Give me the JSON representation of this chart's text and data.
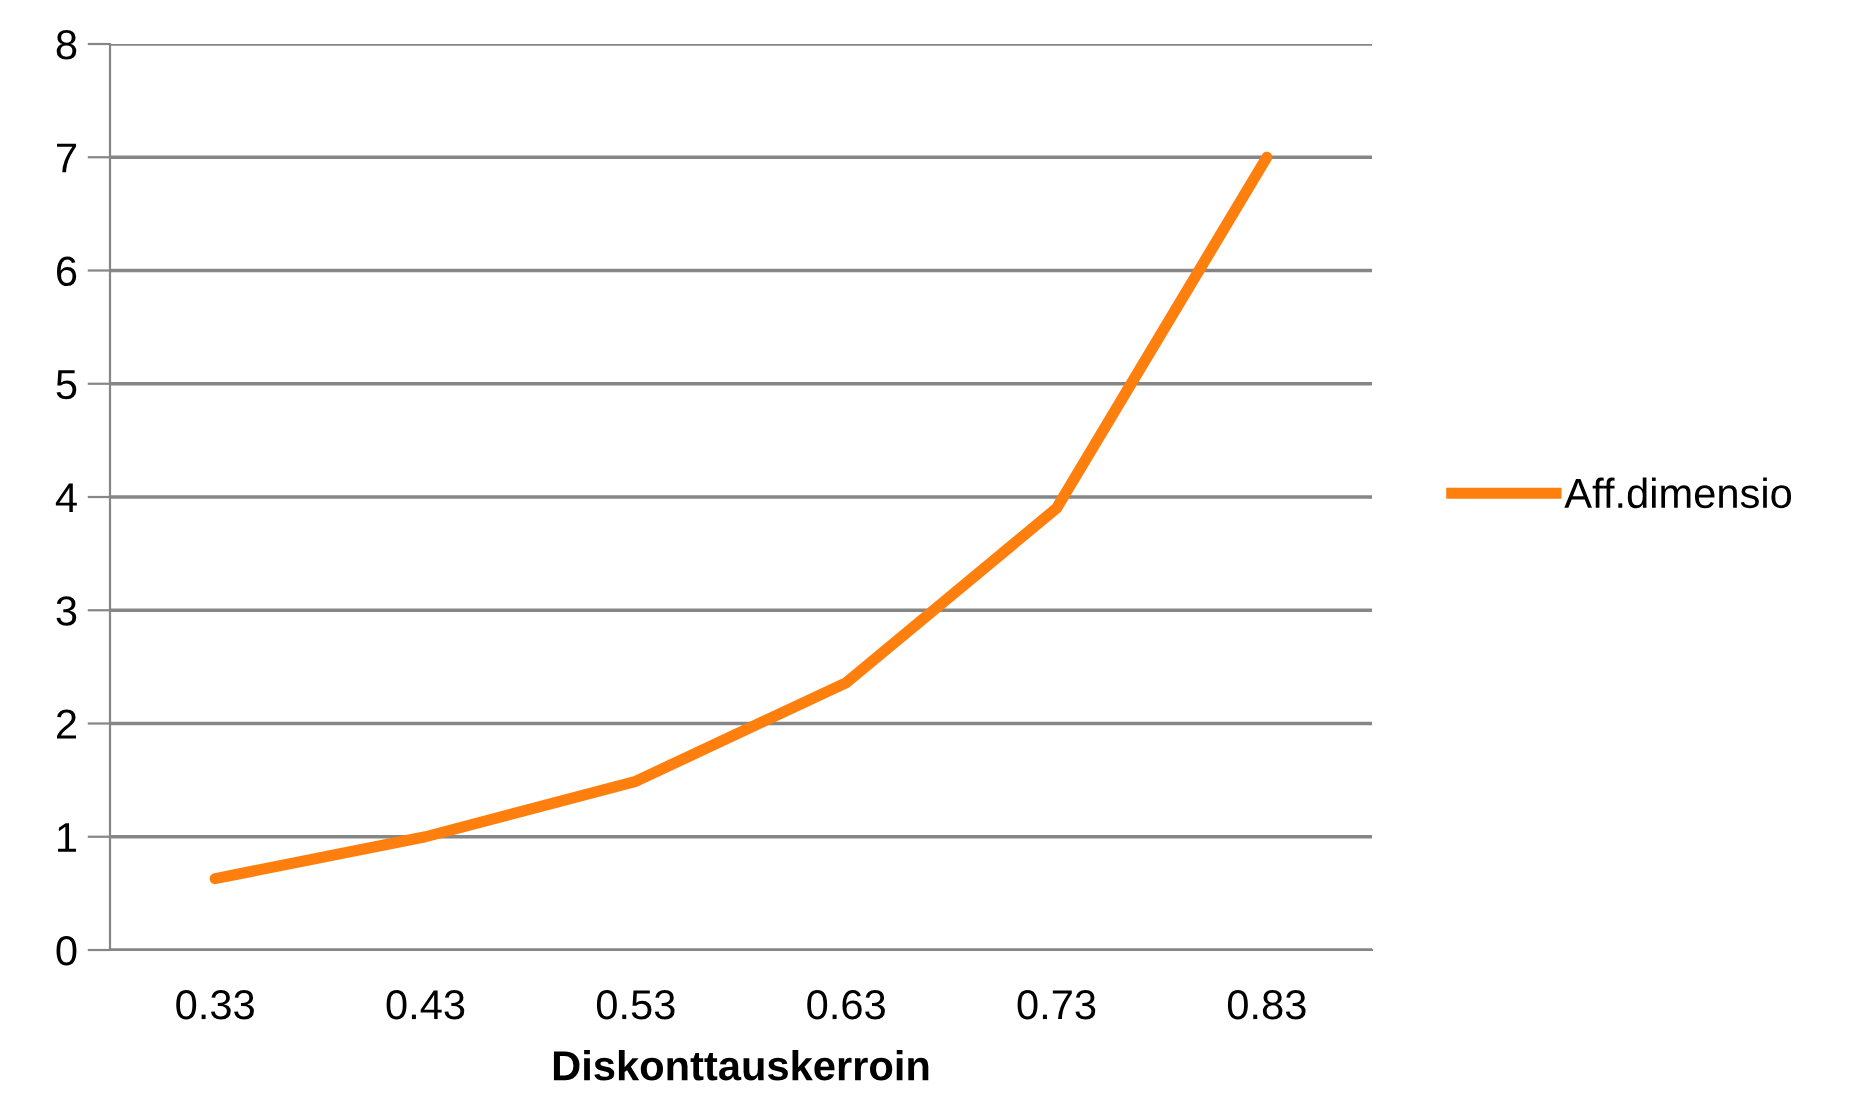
{
  "chart_data": {
    "type": "line",
    "xlabel": "Diskonttauskerroin",
    "categories": [
      "0.33",
      "0.43",
      "0.53",
      "0.63",
      "0.73",
      "0.83"
    ],
    "series": [
      {
        "name": "Aff.dimensio",
        "color": "#ff7f0e",
        "values": [
          0.63,
          1.0,
          1.49,
          2.36,
          3.9,
          7.0
        ]
      }
    ],
    "ylim": [
      0,
      8
    ],
    "yticks": [
      0,
      1,
      2,
      3,
      4,
      5,
      6,
      7,
      8
    ],
    "grid": "y",
    "legend": "right",
    "marker": "none",
    "line_style": "solid"
  }
}
